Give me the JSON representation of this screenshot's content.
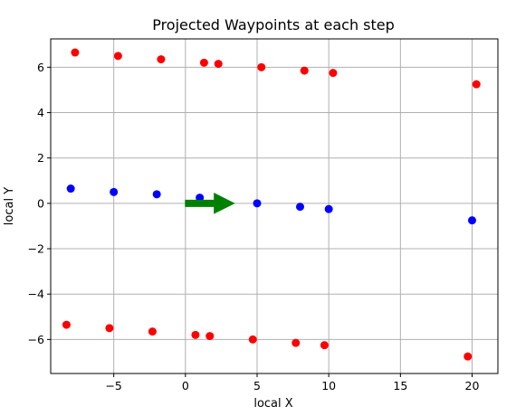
{
  "chart_data": {
    "type": "scatter",
    "title": "Projected Waypoints at each step",
    "xlabel": "local X",
    "ylabel": "local Y",
    "xlim": [
      -9.4,
      21.8
    ],
    "ylim": [
      -7.5,
      7.25
    ],
    "xticks": [
      -5,
      0,
      5,
      10,
      15,
      20
    ],
    "xtick_labels": [
      "−5",
      "0",
      "5",
      "10",
      "15",
      "20"
    ],
    "yticks": [
      -6,
      -4,
      -2,
      0,
      2,
      4,
      6
    ],
    "ytick_labels": [
      "−6",
      "−4",
      "−2",
      "0",
      "2",
      "4",
      "6"
    ],
    "grid": true,
    "series": [
      {
        "color": "#ff0000",
        "x": [
          -7.7,
          -4.7,
          -1.7,
          1.3,
          2.3,
          5.3,
          8.3,
          10.3,
          20.3
        ],
        "y": [
          6.65,
          6.5,
          6.35,
          6.2,
          6.15,
          6.0,
          5.85,
          5.75,
          5.25
        ]
      },
      {
        "color": "#0000ff",
        "x": [
          -8.0,
          -5.0,
          -2.0,
          1.0,
          5.0,
          8.0,
          10.0,
          20.0
        ],
        "y": [
          0.65,
          0.5,
          0.4,
          0.25,
          0.0,
          -0.15,
          -0.25,
          -0.75
        ]
      },
      {
        "color": "#ff0000",
        "x": [
          -8.3,
          -5.3,
          -2.3,
          0.7,
          1.7,
          4.7,
          7.7,
          9.7,
          19.7
        ],
        "y": [
          -5.35,
          -5.5,
          -5.65,
          -5.8,
          -5.85,
          -6.0,
          -6.15,
          -6.25,
          -6.75
        ]
      }
    ],
    "arrow": {
      "color": "#008000",
      "x_start": 0,
      "x_end": 3.4,
      "y": 0
    }
  }
}
